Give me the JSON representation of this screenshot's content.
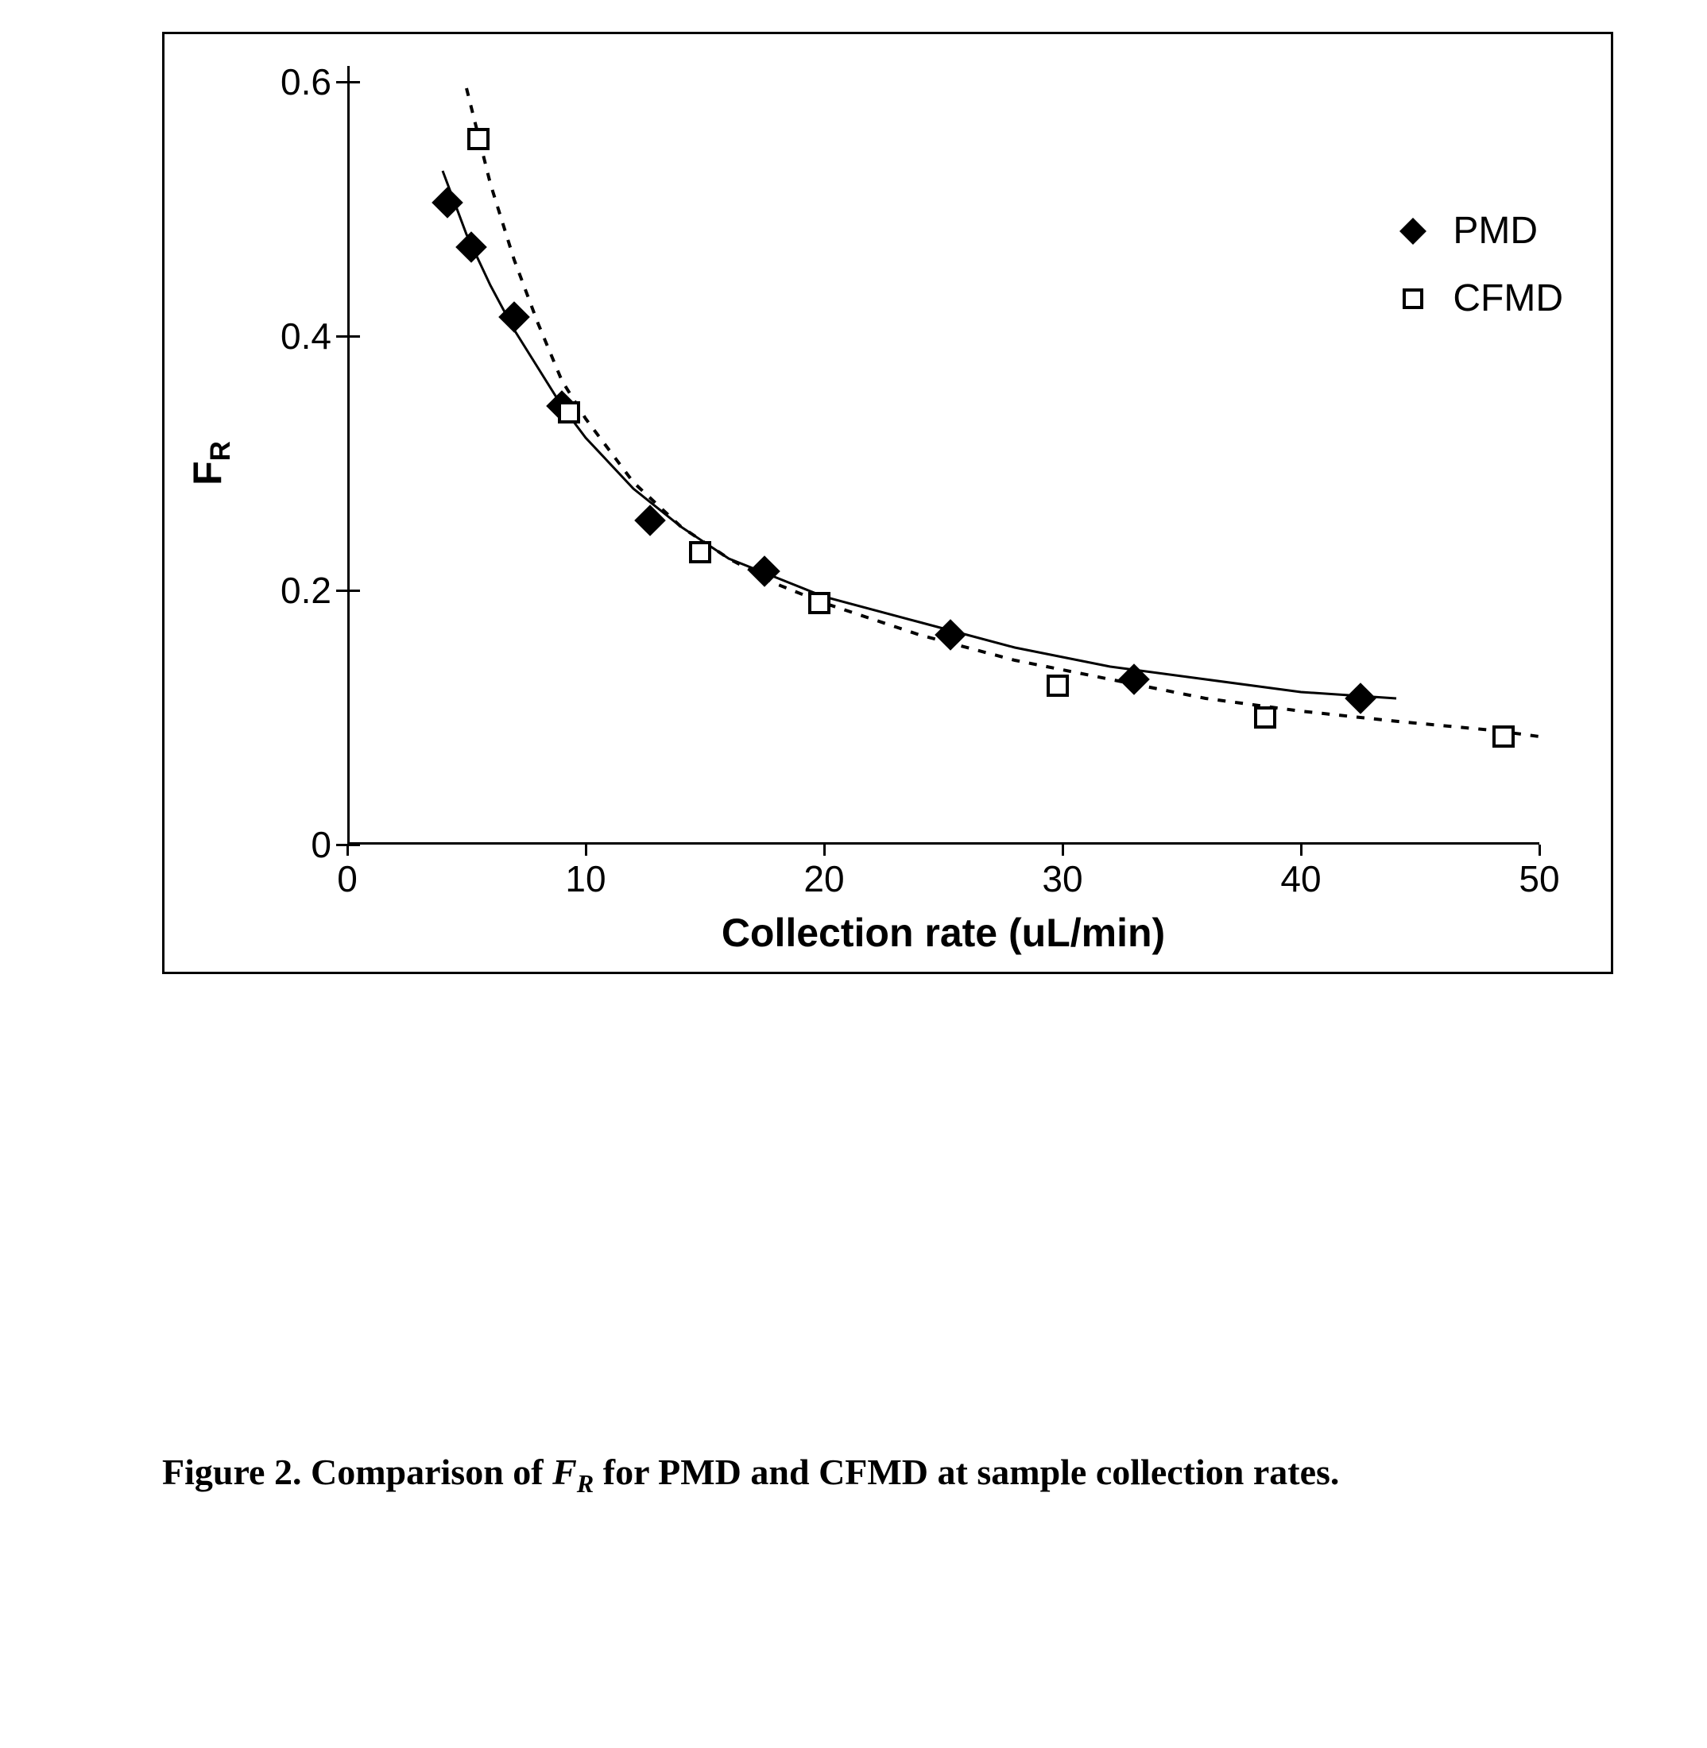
{
  "chart": {
    "type": "scatter-with-fit",
    "xlabel": "Collection rate (uL/min)",
    "ylabel_html": "F<sub>R</sub>",
    "xlim": [
      0,
      50
    ],
    "ylim": [
      0,
      0.6
    ],
    "xtick_step": 10,
    "ytick_step": 0.2,
    "xtick_labels": [
      "0",
      "10",
      "20",
      "30",
      "40",
      "50"
    ],
    "ytick_labels": [
      "0",
      "0.2",
      "0.4",
      "0.6"
    ],
    "background_color": "#ffffff",
    "border_color": "#000000",
    "axis_color": "#000000",
    "label_fontsize": 46,
    "title_fontsize": 50,
    "legend": {
      "position": "right-top",
      "items": [
        {
          "label": "PMD",
          "marker": "diamond-filled",
          "color": "#000000"
        },
        {
          "label": "CFMD",
          "marker": "square-open",
          "color": "#000000"
        }
      ]
    },
    "series": {
      "PMD": {
        "marker": "diamond-filled",
        "marker_size": 28,
        "marker_color": "#000000",
        "line_style": "solid",
        "line_width": 3,
        "line_color": "#000000",
        "points": [
          {
            "x": 4.2,
            "y": 0.505
          },
          {
            "x": 5.2,
            "y": 0.47
          },
          {
            "x": 7.0,
            "y": 0.415
          },
          {
            "x": 9.0,
            "y": 0.345
          },
          {
            "x": 12.7,
            "y": 0.255
          },
          {
            "x": 17.5,
            "y": 0.215
          },
          {
            "x": 25.3,
            "y": 0.165
          },
          {
            "x": 33.0,
            "y": 0.13
          },
          {
            "x": 42.5,
            "y": 0.115
          }
        ],
        "fit_curve": [
          {
            "x": 4.0,
            "y": 0.53
          },
          {
            "x": 5.0,
            "y": 0.48
          },
          {
            "x": 6.0,
            "y": 0.44
          },
          {
            "x": 7.0,
            "y": 0.405
          },
          {
            "x": 8.0,
            "y": 0.375
          },
          {
            "x": 9.0,
            "y": 0.345
          },
          {
            "x": 10.0,
            "y": 0.32
          },
          {
            "x": 12.0,
            "y": 0.28
          },
          {
            "x": 14.0,
            "y": 0.25
          },
          {
            "x": 16.0,
            "y": 0.225
          },
          {
            "x": 18.0,
            "y": 0.21
          },
          {
            "x": 20.0,
            "y": 0.195
          },
          {
            "x": 24.0,
            "y": 0.175
          },
          {
            "x": 28.0,
            "y": 0.155
          },
          {
            "x": 32.0,
            "y": 0.14
          },
          {
            "x": 36.0,
            "y": 0.13
          },
          {
            "x": 40.0,
            "y": 0.12
          },
          {
            "x": 44.0,
            "y": 0.115
          }
        ]
      },
      "CFMD": {
        "marker": "square-open",
        "marker_size": 22,
        "marker_color": "#000000",
        "line_style": "dashed",
        "line_width": 4,
        "line_dash": "10 12",
        "line_color": "#000000",
        "points": [
          {
            "x": 5.5,
            "y": 0.555
          },
          {
            "x": 9.3,
            "y": 0.34
          },
          {
            "x": 14.8,
            "y": 0.23
          },
          {
            "x": 19.8,
            "y": 0.19
          },
          {
            "x": 29.8,
            "y": 0.125
          },
          {
            "x": 38.5,
            "y": 0.1
          },
          {
            "x": 48.5,
            "y": 0.085
          }
        ],
        "fit_curve": [
          {
            "x": 5.0,
            "y": 0.595
          },
          {
            "x": 6.0,
            "y": 0.52
          },
          {
            "x": 7.0,
            "y": 0.46
          },
          {
            "x": 8.0,
            "y": 0.41
          },
          {
            "x": 9.0,
            "y": 0.365
          },
          {
            "x": 10.0,
            "y": 0.335
          },
          {
            "x": 12.0,
            "y": 0.285
          },
          {
            "x": 14.0,
            "y": 0.25
          },
          {
            "x": 16.0,
            "y": 0.225
          },
          {
            "x": 18.0,
            "y": 0.205
          },
          {
            "x": 20.0,
            "y": 0.19
          },
          {
            "x": 24.0,
            "y": 0.165
          },
          {
            "x": 28.0,
            "y": 0.145
          },
          {
            "x": 32.0,
            "y": 0.13
          },
          {
            "x": 36.0,
            "y": 0.115
          },
          {
            "x": 40.0,
            "y": 0.105
          },
          {
            "x": 44.0,
            "y": 0.097
          },
          {
            "x": 48.0,
            "y": 0.09
          },
          {
            "x": 50.0,
            "y": 0.085
          }
        ]
      }
    }
  },
  "caption": {
    "label": "Figure 2.",
    "text_before": "Comparison of ",
    "fr_html": "F",
    "fr_sub": "R",
    "text_after": " for PMD and CFMD at sample collection rates."
  }
}
